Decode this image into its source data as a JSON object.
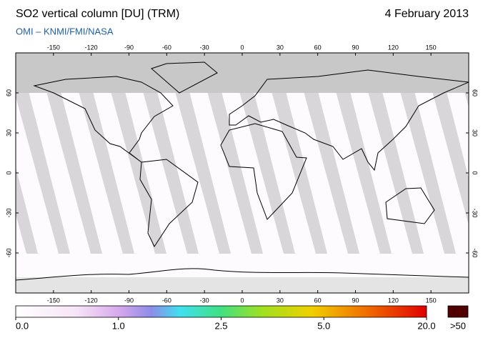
{
  "header": {
    "title": "SO2 vertical column [DU] (TRM)",
    "date": "4 February 2013",
    "subtitle": "OMI  –  KNMI/FMI/NASA"
  },
  "map": {
    "lon_ticks": [
      -150,
      -120,
      -90,
      -60,
      -30,
      0,
      30,
      60,
      90,
      120,
      150
    ],
    "lat_ticks": [
      -60,
      -30,
      0,
      30,
      60
    ]
  },
  "colorbar": {
    "ticks": [
      {
        "value": 0,
        "label": "0.0"
      },
      {
        "value": 1,
        "label": "1.0"
      },
      {
        "value": 2.5,
        "label": "2.5"
      },
      {
        "value": 5,
        "label": "5.0"
      },
      {
        "value": 20,
        "label": "20.0"
      }
    ],
    "over_label": ">50"
  }
}
